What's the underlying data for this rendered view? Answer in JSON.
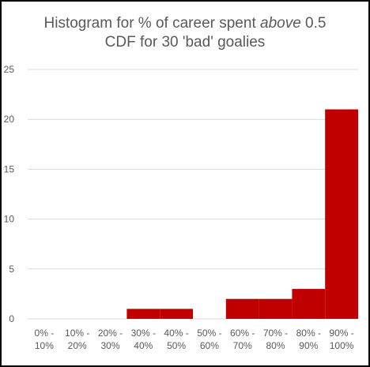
{
  "chart_data": {
    "type": "bar",
    "title": {
      "line1_before": "Histogram for % of career spent ",
      "line1_emphasis": "above",
      "line1_after": " 0.5",
      "line2": "CDF for 30 'bad' goalies"
    },
    "categories": [
      [
        "0% -",
        "10%"
      ],
      [
        "10% -",
        "20%"
      ],
      [
        "20% -",
        "30%"
      ],
      [
        "30% -",
        "40%"
      ],
      [
        "40% -",
        "50%"
      ],
      [
        "50% -",
        "60%"
      ],
      [
        "60% -",
        "70%"
      ],
      [
        "70% -",
        "80%"
      ],
      [
        "80% -",
        "90%"
      ],
      [
        "90% -",
        "100%"
      ]
    ],
    "values": [
      0,
      0,
      0,
      1,
      1,
      0,
      2,
      2,
      3,
      21
    ],
    "yticks": [
      0,
      5,
      10,
      15,
      20,
      25
    ],
    "ylim": [
      0,
      25
    ],
    "grid": true,
    "legend": "none",
    "colors": {
      "bar": "#c00000",
      "grid": "#d9d9d9",
      "text": "#595959"
    }
  }
}
